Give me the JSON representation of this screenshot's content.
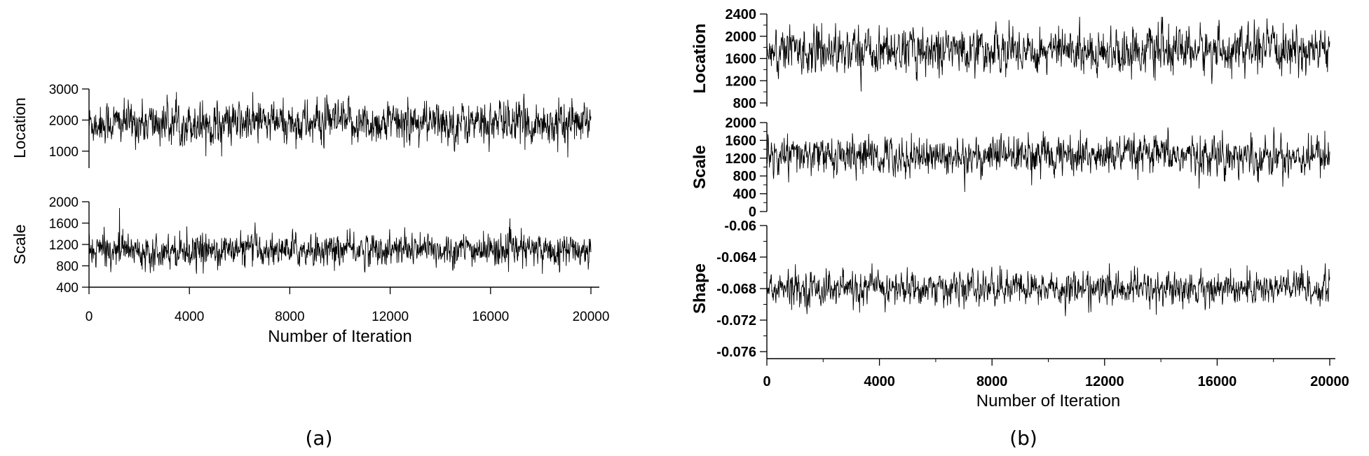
{
  "chart_data": [
    {
      "type": "line",
      "panel": "a",
      "caption": "(a)",
      "xlabel": "Number of Iteration",
      "xlim": [
        0,
        20000
      ],
      "xticks": [
        "0",
        "4000",
        "8000",
        "12000",
        "16000",
        "20000"
      ],
      "subplots": [
        {
          "ylabel": "Location",
          "ylim": [
            500,
            3000
          ],
          "yticks": [
            "3000",
            "2000",
            "1000"
          ],
          "series": [
            {
              "x_range": [
                0,
                20000
              ],
              "mean": 1900,
              "min": 800,
              "max": 2900
            }
          ]
        },
        {
          "ylabel": "Scale",
          "ylim": [
            400,
            2000
          ],
          "yticks": [
            "2000",
            "1600",
            "1200",
            "800",
            "400"
          ],
          "series": [
            {
              "x_range": [
                0,
                20000
              ],
              "mean": 1100,
              "min": 650,
              "max": 1900
            }
          ]
        }
      ]
    },
    {
      "type": "line",
      "panel": "b",
      "caption": "(b)",
      "xlabel": "Number of Iteration",
      "xlim": [
        0,
        20000
      ],
      "xticks": [
        "0",
        "4000",
        "8000",
        "12000",
        "16000",
        "20000"
      ],
      "subplots": [
        {
          "ylabel": "Location",
          "ylim": [
            800,
            2400
          ],
          "yticks": [
            "2400",
            "2000",
            "1600",
            "1200",
            "800"
          ],
          "series": [
            {
              "x_range": [
                0,
                20000
              ],
              "mean": 1750,
              "min": 1000,
              "max": 2350
            }
          ]
        },
        {
          "ylabel": "Scale",
          "ylim": [
            0,
            2000
          ],
          "yticks": [
            "2000",
            "1600",
            "1200",
            "800",
            "400",
            "0"
          ],
          "series": [
            {
              "x_range": [
                0,
                20000
              ],
              "mean": 1250,
              "min": 400,
              "max": 1900
            }
          ]
        },
        {
          "ylabel": "Shape",
          "ylim": [
            -0.076,
            -0.06
          ],
          "yticks": [
            "-0.06",
            "-0.064",
            "-0.068",
            "-0.072",
            "-0.076"
          ],
          "series": [
            {
              "x_range": [
                0,
                20000
              ],
              "mean": -0.068,
              "min": -0.0715,
              "max": -0.0648
            }
          ]
        }
      ]
    }
  ]
}
